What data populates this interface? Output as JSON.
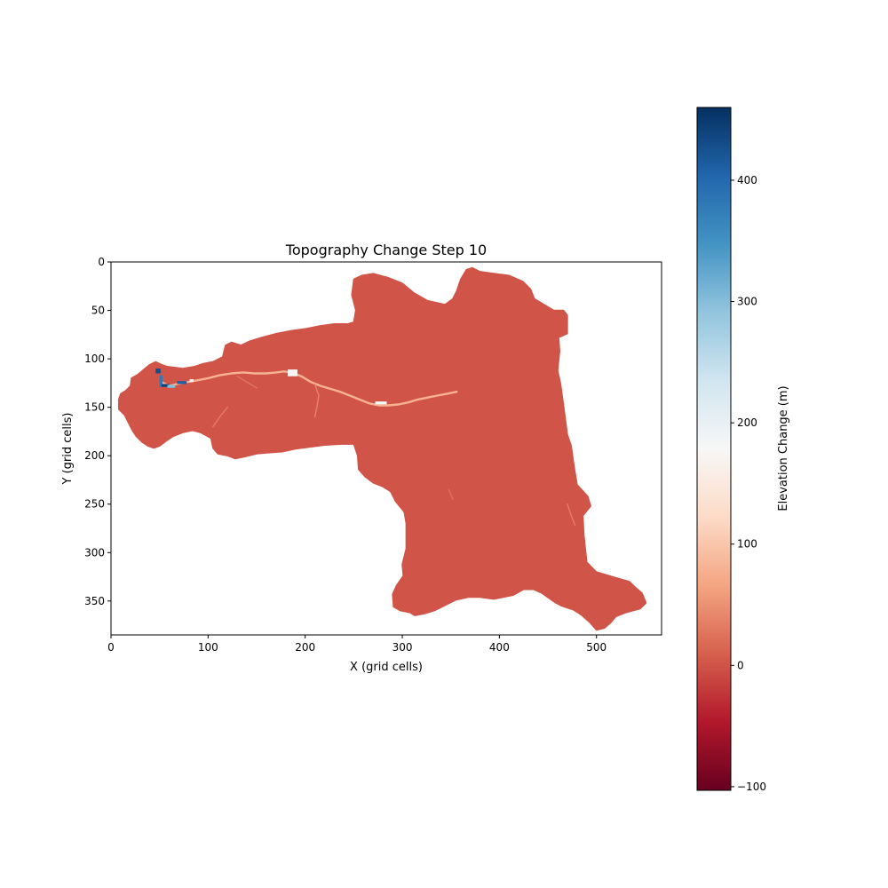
{
  "chart_data": {
    "type": "heatmap",
    "title": "Topography Change Step 10",
    "xlabel": "X (grid cells)",
    "ylabel": "Y (grid cells)",
    "xlim": [
      0,
      567
    ],
    "ylim": [
      385,
      0
    ],
    "x_ticks": [
      0,
      100,
      200,
      300,
      400,
      500
    ],
    "y_ticks": [
      0,
      50,
      100,
      150,
      200,
      250,
      300,
      350
    ],
    "colorbar": {
      "label": "Elevation Change (m)",
      "range": [
        -103,
        460
      ],
      "ticks": [
        -100,
        0,
        100,
        200,
        300,
        400
      ],
      "colormap": "RdBu",
      "colors": [
        "#67001f",
        "#b2182b",
        "#d6604d",
        "#f4a582",
        "#fddbc7",
        "#f7f7f7",
        "#d1e5f0",
        "#92c5de",
        "#4393c3",
        "#2166ac",
        "#053061"
      ]
    },
    "background_value": 0,
    "watershed_outline": [
      [
        8,
        142
      ],
      [
        10,
        136
      ],
      [
        15,
        133
      ],
      [
        20,
        128
      ],
      [
        21,
        120
      ],
      [
        28,
        116
      ],
      [
        35,
        110
      ],
      [
        40,
        106
      ],
      [
        46,
        103
      ],
      [
        52,
        106
      ],
      [
        58,
        108
      ],
      [
        66,
        109
      ],
      [
        74,
        110
      ],
      [
        86,
        108
      ],
      [
        95,
        105
      ],
      [
        105,
        103
      ],
      [
        115,
        98
      ],
      [
        118,
        86
      ],
      [
        124,
        83
      ],
      [
        134,
        86
      ],
      [
        142,
        82
      ],
      [
        155,
        78
      ],
      [
        170,
        74
      ],
      [
        185,
        71
      ],
      [
        200,
        69
      ],
      [
        215,
        66
      ],
      [
        230,
        64
      ],
      [
        244,
        64
      ],
      [
        250,
        62
      ],
      [
        252,
        50
      ],
      [
        248,
        34
      ],
      [
        250,
        18
      ],
      [
        258,
        14
      ],
      [
        270,
        12
      ],
      [
        285,
        16
      ],
      [
        300,
        22
      ],
      [
        312,
        32
      ],
      [
        326,
        40
      ],
      [
        344,
        44
      ],
      [
        352,
        38
      ],
      [
        356,
        30
      ],
      [
        360,
        18
      ],
      [
        366,
        8
      ],
      [
        372,
        6
      ],
      [
        380,
        10
      ],
      [
        395,
        12
      ],
      [
        410,
        14
      ],
      [
        424,
        20
      ],
      [
        432,
        28
      ],
      [
        436,
        38
      ],
      [
        446,
        44
      ],
      [
        456,
        50
      ],
      [
        466,
        50
      ],
      [
        470,
        55
      ],
      [
        470,
        74
      ],
      [
        461,
        78
      ],
      [
        462,
        92
      ],
      [
        460,
        112
      ],
      [
        463,
        126
      ],
      [
        466,
        148
      ],
      [
        470,
        178
      ],
      [
        474,
        190
      ],
      [
        476,
        205
      ],
      [
        478,
        218
      ],
      [
        480,
        230
      ],
      [
        491,
        242
      ],
      [
        494,
        252
      ],
      [
        486,
        262
      ],
      [
        487,
        282
      ],
      [
        490,
        310
      ],
      [
        500,
        320
      ],
      [
        520,
        326
      ],
      [
        534,
        330
      ],
      [
        540,
        336
      ],
      [
        547,
        342
      ],
      [
        551,
        352
      ],
      [
        545,
        358
      ],
      [
        530,
        362
      ],
      [
        520,
        366
      ],
      [
        515,
        372
      ],
      [
        508,
        378
      ],
      [
        500,
        380
      ],
      [
        493,
        372
      ],
      [
        484,
        364
      ],
      [
        476,
        359
      ],
      [
        464,
        355
      ],
      [
        458,
        352
      ],
      [
        444,
        342
      ],
      [
        435,
        338
      ],
      [
        425,
        338
      ],
      [
        414,
        344
      ],
      [
        404,
        346
      ],
      [
        394,
        348
      ],
      [
        380,
        346
      ],
      [
        368,
        346
      ],
      [
        355,
        349
      ],
      [
        345,
        354
      ],
      [
        333,
        360
      ],
      [
        323,
        363
      ],
      [
        313,
        365
      ],
      [
        308,
        362
      ],
      [
        298,
        360
      ],
      [
        291,
        356
      ],
      [
        290,
        343
      ],
      [
        294,
        334
      ],
      [
        301,
        324
      ],
      [
        300,
        312
      ],
      [
        304,
        296
      ],
      [
        304,
        270
      ],
      [
        302,
        258
      ],
      [
        293,
        247
      ],
      [
        288,
        237
      ],
      [
        280,
        232
      ],
      [
        270,
        228
      ],
      [
        262,
        222
      ],
      [
        255,
        214
      ],
      [
        254,
        200
      ],
      [
        250,
        188
      ],
      [
        238,
        188
      ],
      [
        220,
        189
      ],
      [
        205,
        191
      ],
      [
        190,
        193
      ],
      [
        176,
        196
      ],
      [
        162,
        197
      ],
      [
        150,
        198
      ],
      [
        138,
        201
      ],
      [
        128,
        203
      ],
      [
        120,
        200
      ],
      [
        110,
        198
      ],
      [
        105,
        192
      ],
      [
        103,
        182
      ],
      [
        92,
        176
      ],
      [
        84,
        174
      ],
      [
        74,
        176
      ],
      [
        64,
        180
      ],
      [
        58,
        184
      ],
      [
        50,
        190
      ],
      [
        44,
        192
      ],
      [
        38,
        190
      ],
      [
        32,
        186
      ],
      [
        26,
        180
      ],
      [
        22,
        174
      ],
      [
        18,
        166
      ],
      [
        14,
        158
      ],
      [
        8,
        152
      ]
    ],
    "channels": [
      {
        "value": 80,
        "points": [
          [
            52,
            124
          ],
          [
            60,
            128
          ],
          [
            68,
            126
          ],
          [
            78,
            124
          ],
          [
            90,
            122
          ],
          [
            100,
            120
          ],
          [
            112,
            117
          ],
          [
            124,
            115
          ],
          [
            136,
            114
          ],
          [
            148,
            115
          ],
          [
            160,
            115
          ],
          [
            170,
            114
          ],
          [
            178,
            113
          ],
          [
            186,
            114
          ],
          [
            196,
            118
          ],
          [
            206,
            124
          ],
          [
            216,
            128
          ],
          [
            226,
            131
          ],
          [
            236,
            134
          ],
          [
            246,
            138
          ],
          [
            256,
            142
          ],
          [
            266,
            146
          ],
          [
            276,
            148
          ],
          [
            286,
            148
          ],
          [
            296,
            147
          ],
          [
            306,
            145
          ],
          [
            316,
            142
          ],
          [
            326,
            140
          ],
          [
            336,
            138
          ],
          [
            346,
            136
          ],
          [
            356,
            134
          ]
        ]
      },
      {
        "value": 40,
        "points": [
          [
            210,
            126
          ],
          [
            214,
            138
          ],
          [
            212,
            150
          ],
          [
            210,
            160
          ]
        ]
      },
      {
        "value": 35,
        "points": [
          [
            120,
            150
          ],
          [
            112,
            160
          ],
          [
            105,
            170
          ]
        ]
      },
      {
        "value": 30,
        "points": [
          [
            130,
            118
          ],
          [
            140,
            124
          ],
          [
            150,
            130
          ]
        ]
      },
      {
        "value": 35,
        "points": [
          [
            470,
            250
          ],
          [
            474,
            262
          ],
          [
            478,
            272
          ]
        ]
      },
      {
        "value": 25,
        "points": [
          [
            348,
            235
          ],
          [
            352,
            245
          ]
        ]
      }
    ],
    "hotspots": [
      {
        "value": 430,
        "x": 46,
        "y": 110,
        "w": 5,
        "h": 5
      },
      {
        "value": 380,
        "x": 50,
        "y": 117,
        "w": 3,
        "h": 12
      },
      {
        "value": 440,
        "x": 52,
        "y": 126,
        "w": 8,
        "h": 3
      },
      {
        "value": 410,
        "x": 68,
        "y": 123,
        "w": 10,
        "h": 3
      },
      {
        "value": 300,
        "x": 58,
        "y": 127,
        "w": 8,
        "h": 3
      },
      {
        "value": 200,
        "x": 81,
        "y": 121,
        "w": 4,
        "h": 3
      },
      {
        "value": 175,
        "x": 182,
        "y": 111,
        "w": 10,
        "h": 7
      },
      {
        "value": 180,
        "x": 272,
        "y": 144,
        "w": 12,
        "h": 3
      }
    ]
  }
}
